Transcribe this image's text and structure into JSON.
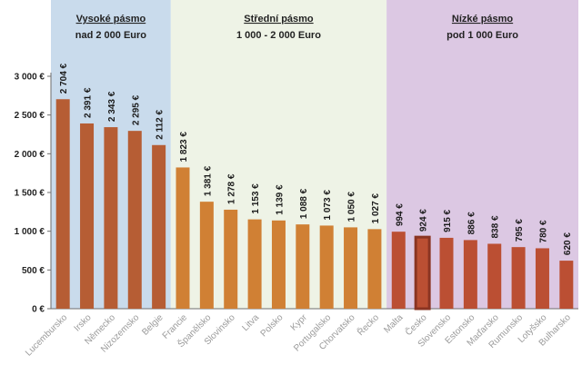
{
  "chart_data": {
    "type": "bar",
    "categories": [
      "Lucembursko",
      "Irsko",
      "Německo",
      "Nizozemsko",
      "Belgie",
      "Francie",
      "Španělsko",
      "Slovinsko",
      "Litva",
      "Polsko",
      "Kypr",
      "Portugalsko",
      "Chorvatsko",
      "Řecko",
      "Malta",
      "Česko",
      "Slovensko",
      "Estonsko",
      "Maďarsko",
      "Rumunsko",
      "Lotyšsko",
      "Bulharsko"
    ],
    "values": [
      2704,
      2391,
      2343,
      2295,
      2112,
      1823,
      1381,
      1278,
      1153,
      1139,
      1088,
      1073,
      1050,
      1027,
      994,
      924,
      915,
      886,
      838,
      795,
      780,
      620
    ],
    "data_labels": [
      "2 704 €",
      "2 391 €",
      "2 343 €",
      "2 295 €",
      "2 112 €",
      "1 823 €",
      "1 381 €",
      "1 278 €",
      "1 153 €",
      "1 139 €",
      "1 088 €",
      "1 073 €",
      "1 050 €",
      "1 027 €",
      "994 €",
      "924 €",
      "915 €",
      "886 €",
      "838 €",
      "795 €",
      "780 €",
      "620 €"
    ],
    "highlighted": "Česko",
    "ylim": [
      0,
      3000
    ],
    "yticks": [
      {
        "value": 0,
        "label": "0 €"
      },
      {
        "value": 500,
        "label": "500 €"
      },
      {
        "value": 1000,
        "label": "1 000 €"
      },
      {
        "value": 1500,
        "label": "1 500 €"
      },
      {
        "value": 2000,
        "label": "2 000 €"
      },
      {
        "value": 2500,
        "label": "2 500 €"
      },
      {
        "value": 3000,
        "label": "3 000 €"
      }
    ],
    "grid": false,
    "bands": [
      {
        "title": "Vysoké pásmo",
        "subtitle": "nad 2 000 Euro",
        "from": 0,
        "to": 4,
        "color": "#c9dbec",
        "bar_color": "#b65d34"
      },
      {
        "title": "Střední pásmo",
        "subtitle": "1 000 - 2 000 Euro",
        "from": 5,
        "to": 13,
        "color": "#eef3e6",
        "bar_color": "#d08034"
      },
      {
        "title": "Nízké pásmo",
        "subtitle": "pod 1 000 Euro",
        "from": 14,
        "to": 21,
        "color": "#dcc8e3",
        "bar_color": "#bb4f33"
      }
    ],
    "highlight_color": "#8a3422"
  }
}
